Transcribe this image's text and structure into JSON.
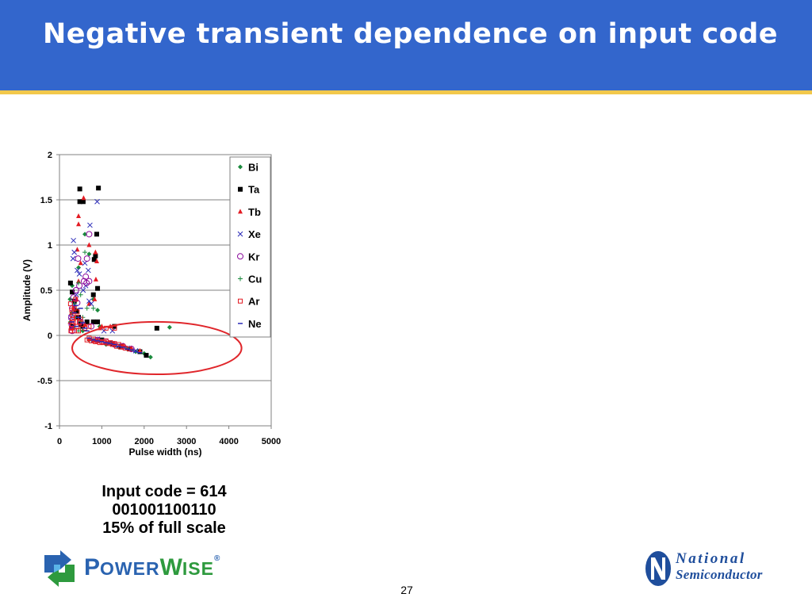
{
  "slide": {
    "title": "Negative transient dependence on input code",
    "caption": [
      "Input code = 614",
      "001001100110",
      "15% of full scale"
    ],
    "page_number": "27"
  },
  "logos": {
    "powerwise": {
      "text_power_big": "P",
      "text_power_small": "OWER",
      "text_wise_big": "W",
      "text_wise_small": "ISE",
      "registered": "®",
      "color": "#2a63b0",
      "accent": "#2e9a3e"
    },
    "national": {
      "line1": "National",
      "line2": "Semiconductor",
      "color": "#1f4e9c"
    }
  },
  "colors": {
    "header": "#3366cc",
    "header_line": "#f2c84b",
    "ellipse": "#e0262b"
  },
  "chart_data": {
    "type": "scatter",
    "title": "",
    "xlabel": "Pulse width (ns)",
    "ylabel": "Amplitude (V)",
    "xlim": [
      0,
      5000
    ],
    "ylim": [
      -1,
      2
    ],
    "xticks": [
      0,
      1000,
      2000,
      3000,
      4000,
      5000
    ],
    "yticks": [
      -1,
      -0.5,
      0,
      0.5,
      1,
      1.5,
      2
    ],
    "ytick_labels": [
      "-1",
      "-0.5",
      "0",
      "0.5",
      "1",
      "1.5",
      "2"
    ],
    "grid": "horizontal",
    "legend_position": "right-inside",
    "annotation": "ellipse around negative-amplitude cluster",
    "annotation_region": {
      "x": [
        300,
        4300
      ],
      "y": [
        -0.43,
        0.15
      ]
    },
    "series": [
      {
        "name": "Bi",
        "marker": "diamond",
        "color": "#1a8a3c",
        "points": [
          [
            300,
            0.55
          ],
          [
            350,
            0.3
          ],
          [
            400,
            0.2
          ],
          [
            450,
            0.75
          ],
          [
            500,
            0.15
          ],
          [
            600,
            1.12
          ],
          [
            700,
            0.9
          ],
          [
            800,
            0.4
          ],
          [
            900,
            0.28
          ],
          [
            950,
            0.1
          ],
          [
            700,
            -0.05
          ],
          [
            900,
            -0.06
          ],
          [
            1200,
            -0.08
          ],
          [
            1400,
            -0.13
          ],
          [
            1600,
            -0.15
          ],
          [
            1800,
            -0.18
          ],
          [
            2000,
            -0.2
          ],
          [
            2150,
            -0.24
          ],
          [
            2600,
            0.09
          ],
          [
            1100,
            -0.1
          ],
          [
            1300,
            -0.11
          ],
          [
            1700,
            -0.16
          ],
          [
            550,
            0.05
          ],
          [
            250,
            0.4
          ]
        ]
      },
      {
        "name": "Ta",
        "marker": "square",
        "color": "#000000",
        "points": [
          [
            480,
            1.62
          ],
          [
            920,
            1.63
          ],
          [
            480,
            1.48
          ],
          [
            560,
            1.48
          ],
          [
            880,
            1.12
          ],
          [
            820,
            0.84
          ],
          [
            850,
            0.88
          ],
          [
            900,
            0.52
          ],
          [
            260,
            0.58
          ],
          [
            300,
            0.48
          ],
          [
            350,
            0.38
          ],
          [
            400,
            0.27
          ],
          [
            450,
            0.2
          ],
          [
            500,
            0.12
          ],
          [
            550,
            0.1
          ],
          [
            650,
            0.15
          ],
          [
            800,
            0.15
          ],
          [
            900,
            0.15
          ],
          [
            2300,
            0.08
          ],
          [
            1000,
            -0.05
          ],
          [
            1250,
            -0.09
          ],
          [
            1450,
            -0.12
          ],
          [
            1650,
            -0.15
          ],
          [
            1900,
            -0.18
          ],
          [
            2050,
            -0.22
          ],
          [
            800,
            0.45
          ],
          [
            300,
            0.1
          ],
          [
            1300,
            0.1
          ]
        ]
      },
      {
        "name": "Tb",
        "marker": "triangle",
        "color": "#e31b23",
        "points": [
          [
            570,
            1.52
          ],
          [
            450,
            1.32
          ],
          [
            450,
            1.23
          ],
          [
            420,
            0.95
          ],
          [
            500,
            0.8
          ],
          [
            700,
            1.0
          ],
          [
            850,
            0.92
          ],
          [
            880,
            0.82
          ],
          [
            860,
            0.62
          ],
          [
            830,
            0.4
          ],
          [
            700,
            0.35
          ],
          [
            400,
            0.4
          ],
          [
            330,
            0.3
          ],
          [
            280,
            0.25
          ],
          [
            250,
            0.15
          ],
          [
            300,
            0.08
          ],
          [
            600,
            0.12
          ],
          [
            1000,
            0.1
          ],
          [
            1200,
            0.1
          ],
          [
            700,
            -0.04
          ],
          [
            900,
            -0.05
          ],
          [
            1100,
            -0.07
          ],
          [
            1300,
            -0.09
          ],
          [
            1500,
            -0.11
          ],
          [
            1700,
            -0.14
          ],
          [
            1900,
            -0.17
          ],
          [
            800,
            -0.06
          ],
          [
            450,
            0.6
          ],
          [
            950,
            0.08
          ]
        ]
      },
      {
        "name": "Xe",
        "marker": "x",
        "color": "#2b2bb8",
        "points": [
          [
            720,
            1.22
          ],
          [
            890,
            1.48
          ],
          [
            330,
            1.05
          ],
          [
            320,
            0.85
          ],
          [
            350,
            0.92
          ],
          [
            420,
            0.72
          ],
          [
            470,
            0.68
          ],
          [
            620,
            0.55
          ],
          [
            700,
            0.38
          ],
          [
            400,
            0.45
          ],
          [
            330,
            0.35
          ],
          [
            270,
            0.2
          ],
          [
            290,
            0.1
          ],
          [
            750,
            0.35
          ],
          [
            1050,
            0.05
          ],
          [
            1250,
            0.05
          ],
          [
            800,
            -0.05
          ],
          [
            1000,
            -0.06
          ],
          [
            1200,
            -0.08
          ],
          [
            1400,
            -0.11
          ],
          [
            1600,
            -0.14
          ],
          [
            1800,
            -0.17
          ],
          [
            600,
            0.8
          ],
          [
            680,
            0.72
          ],
          [
            560,
            0.5
          ],
          [
            900,
            -0.04
          ]
        ]
      },
      {
        "name": "Kr",
        "marker": "circle",
        "color": "#8b0a9c",
        "points": [
          [
            700,
            1.12
          ],
          [
            440,
            0.85
          ],
          [
            650,
            0.85
          ],
          [
            620,
            0.65
          ],
          [
            700,
            0.6
          ],
          [
            580,
            0.6
          ],
          [
            470,
            0.55
          ],
          [
            390,
            0.5
          ],
          [
            330,
            0.42
          ],
          [
            300,
            0.3
          ],
          [
            280,
            0.2
          ],
          [
            290,
            0.12
          ],
          [
            500,
            0.15
          ],
          [
            750,
            0.1
          ],
          [
            900,
            -0.05
          ],
          [
            1100,
            -0.07
          ],
          [
            1300,
            -0.1
          ],
          [
            1500,
            -0.12
          ],
          [
            1700,
            -0.15
          ],
          [
            300,
            0.05
          ],
          [
            420,
            0.36
          ],
          [
            640,
            0.58
          ]
        ]
      },
      {
        "name": "Cu",
        "marker": "plus",
        "color": "#1a8a3c",
        "points": [
          [
            600,
            0.92
          ],
          [
            450,
            0.58
          ],
          [
            500,
            0.45
          ],
          [
            350,
            0.35
          ],
          [
            300,
            0.25
          ],
          [
            260,
            0.15
          ],
          [
            350,
            0.1
          ],
          [
            450,
            0.05
          ],
          [
            650,
            0.3
          ],
          [
            800,
            0.3
          ],
          [
            1000,
            -0.06
          ],
          [
            1200,
            -0.09
          ],
          [
            1400,
            -0.12
          ],
          [
            1600,
            -0.14
          ],
          [
            800,
            -0.05
          ],
          [
            550,
            0.2
          ]
        ]
      },
      {
        "name": "Ar",
        "marker": "square-open",
        "color": "#e31b23",
        "points": [
          [
            300,
            0.12
          ],
          [
            320,
            0.22
          ],
          [
            350,
            0.3
          ],
          [
            280,
            0.08
          ],
          [
            400,
            0.2
          ],
          [
            260,
            0.35
          ],
          [
            270,
            0.05
          ],
          [
            330,
            0.15
          ],
          [
            420,
            0.1
          ],
          [
            500,
            0.18
          ],
          [
            600,
            0.08
          ],
          [
            700,
            0.1
          ],
          [
            650,
            -0.05
          ],
          [
            750,
            -0.06
          ],
          [
            850,
            -0.07
          ],
          [
            950,
            -0.08
          ],
          [
            1050,
            -0.08
          ],
          [
            1150,
            -0.09
          ],
          [
            1250,
            -0.1
          ],
          [
            1350,
            -0.12
          ],
          [
            1450,
            -0.13
          ],
          [
            1550,
            -0.14
          ],
          [
            1650,
            -0.15
          ],
          [
            700,
            -0.03
          ],
          [
            800,
            -0.04
          ],
          [
            900,
            -0.06
          ],
          [
            1000,
            -0.07
          ],
          [
            1100,
            -0.06
          ],
          [
            1200,
            -0.08
          ],
          [
            1300,
            -0.09
          ],
          [
            1400,
            -0.1
          ],
          [
            1500,
            -0.12
          ],
          [
            1100,
            0.08
          ],
          [
            1300,
            0.08
          ],
          [
            380,
            0.4
          ],
          [
            450,
            0.05
          ],
          [
            550,
            0.12
          ],
          [
            350,
            0.05
          ],
          [
            420,
            0.26
          ],
          [
            310,
            0.18
          ],
          [
            290,
            0.28
          ],
          [
            470,
            0.15
          ]
        ]
      },
      {
        "name": "Ne",
        "marker": "dash",
        "color": "#2b2bb8",
        "points": [
          [
            300,
            0.15
          ],
          [
            350,
            0.25
          ],
          [
            400,
            0.1
          ],
          [
            450,
            0.2
          ],
          [
            500,
            0.3
          ],
          [
            600,
            0.08
          ],
          [
            700,
            -0.03
          ],
          [
            800,
            -0.05
          ],
          [
            900,
            -0.06
          ],
          [
            1000,
            -0.07
          ],
          [
            1100,
            -0.08
          ],
          [
            1200,
            -0.09
          ],
          [
            1300,
            -0.1
          ],
          [
            1400,
            -0.12
          ],
          [
            1500,
            -0.13
          ],
          [
            1600,
            -0.15
          ],
          [
            1700,
            -0.16
          ],
          [
            1800,
            -0.18
          ],
          [
            1900,
            -0.19
          ],
          [
            550,
            0.14
          ],
          [
            650,
            0.05
          ],
          [
            380,
            0.33
          ]
        ]
      }
    ]
  }
}
